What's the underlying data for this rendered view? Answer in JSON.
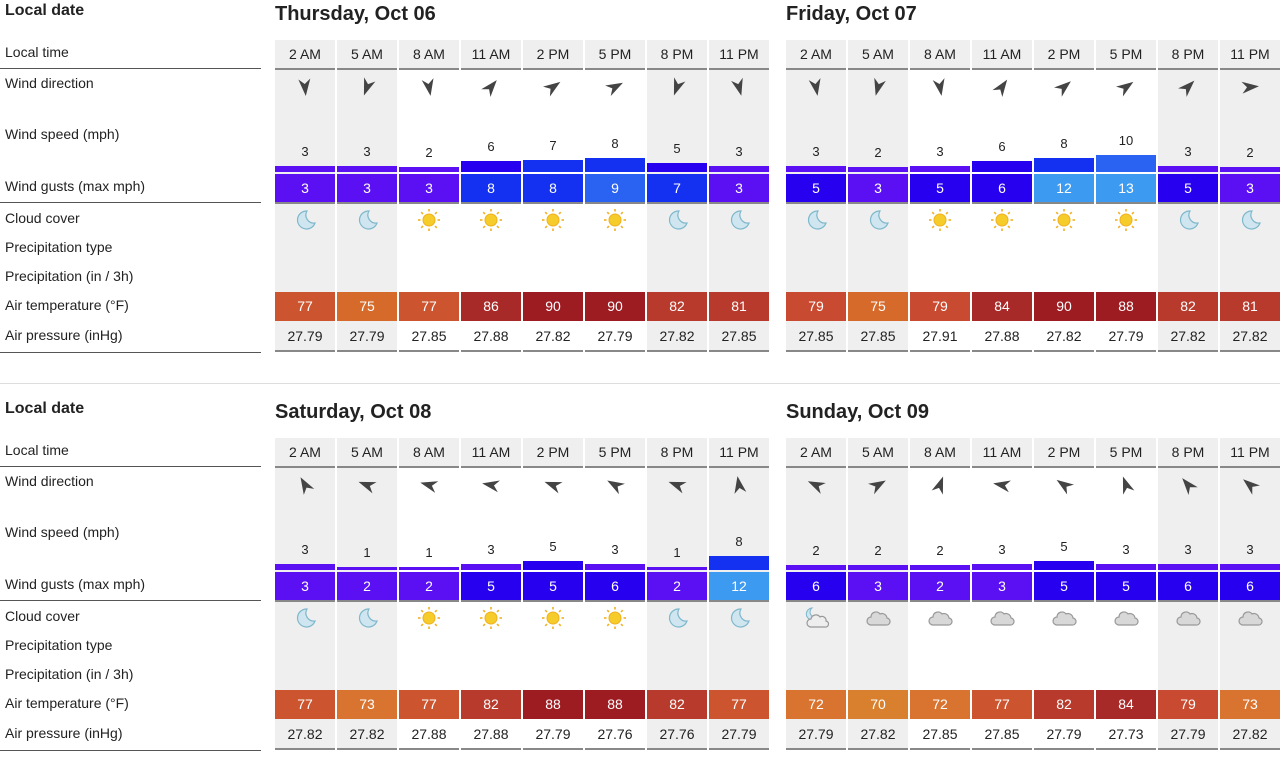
{
  "labels": {
    "local_date": "Local date",
    "local_time": "Local time",
    "wind_direction": "Wind direction",
    "wind_speed": "Wind speed (mph)",
    "wind_gusts": "Wind gusts (max mph)",
    "cloud_cover": "Cloud cover",
    "precip_type": "Precipitation type",
    "precip_amount": "Precipitation (in / 3h)",
    "air_temp": "Air temperature (°F)",
    "air_pressure": "Air pressure (inHg)"
  },
  "times": [
    "2 AM",
    "5 AM",
    "8 AM",
    "11 AM",
    "2 PM",
    "5 PM",
    "8 PM",
    "11 PM"
  ],
  "night_columns": [
    true,
    true,
    false,
    false,
    false,
    false,
    true,
    true
  ],
  "colors": {
    "gust_scale": [
      [
        4,
        "#5a10f2"
      ],
      [
        6,
        "#2800f0"
      ],
      [
        8,
        "#1430f0"
      ],
      [
        10,
        "#2a62f2"
      ],
      [
        99,
        "#3c9af0"
      ]
    ],
    "temp_scale": [
      [
        71,
        "#d8802e"
      ],
      [
        73,
        "#d87330"
      ],
      [
        75,
        "#d66a2a"
      ],
      [
        77,
        "#cc5530"
      ],
      [
        79,
        "#c84a30"
      ],
      [
        82,
        "#b83a2c"
      ],
      [
        86,
        "#a82a28"
      ],
      [
        99,
        "#9c1c22"
      ]
    ]
  },
  "days": [
    {
      "title": "Thursday, Oct 06",
      "wind_dir": [
        175,
        200,
        170,
        40,
        55,
        62,
        200,
        165
      ],
      "wind_speed": [
        3,
        3,
        2,
        6,
        7,
        8,
        5,
        3
      ],
      "gusts": [
        3,
        3,
        3,
        8,
        8,
        9,
        7,
        3
      ],
      "cloud": [
        "moon",
        "moon",
        "sun",
        "sun",
        "sun",
        "sun",
        "moon",
        "moon"
      ],
      "temp": [
        77,
        75,
        77,
        86,
        90,
        90,
        82,
        81
      ],
      "pressure": [
        "27.79",
        "27.79",
        "27.85",
        "27.88",
        "27.82",
        "27.79",
        "27.82",
        "27.85"
      ]
    },
    {
      "title": "Friday, Oct 07",
      "wind_dir": [
        170,
        195,
        170,
        35,
        50,
        55,
        45,
        85
      ],
      "wind_speed": [
        3,
        2,
        3,
        6,
        8,
        10,
        3,
        2
      ],
      "gusts": [
        5,
        3,
        5,
        6,
        12,
        13,
        5,
        3
      ],
      "cloud": [
        "moon",
        "moon",
        "sun",
        "sun",
        "sun",
        "sun",
        "moon",
        "moon"
      ],
      "temp": [
        79,
        75,
        79,
        84,
        90,
        88,
        82,
        81
      ],
      "pressure": [
        "27.85",
        "27.85",
        "27.91",
        "27.88",
        "27.82",
        "27.79",
        "27.82",
        "27.82"
      ]
    },
    {
      "title": "Saturday, Oct 08",
      "wind_dir": [
        330,
        290,
        285,
        280,
        290,
        300,
        290,
        350
      ],
      "wind_speed": [
        3,
        1,
        1,
        3,
        5,
        3,
        1,
        8
      ],
      "gusts": [
        3,
        2,
        2,
        5,
        5,
        6,
        2,
        12
      ],
      "cloud": [
        "moon",
        "moon",
        "sun",
        "sun",
        "sun",
        "sun",
        "moon",
        "moon"
      ],
      "temp": [
        77,
        73,
        77,
        82,
        88,
        88,
        82,
        77
      ],
      "pressure": [
        "27.82",
        "27.82",
        "27.88",
        "27.88",
        "27.79",
        "27.76",
        "27.76",
        "27.79"
      ]
    },
    {
      "title": "Sunday, Oct 09",
      "wind_dir": [
        295,
        60,
        20,
        280,
        305,
        340,
        320,
        310
      ],
      "wind_speed": [
        2,
        2,
        2,
        3,
        5,
        3,
        3,
        3
      ],
      "gusts": [
        6,
        3,
        2,
        3,
        5,
        5,
        6,
        6
      ],
      "cloud": [
        "partly-cloudy-night",
        "cloud",
        "cloud",
        "cloud",
        "cloud",
        "cloud",
        "cloud",
        "cloud"
      ],
      "temp": [
        72,
        70,
        72,
        77,
        82,
        84,
        79,
        73
      ],
      "pressure": [
        "27.79",
        "27.82",
        "27.85",
        "27.85",
        "27.79",
        "27.73",
        "27.79",
        "27.82"
      ]
    }
  ]
}
